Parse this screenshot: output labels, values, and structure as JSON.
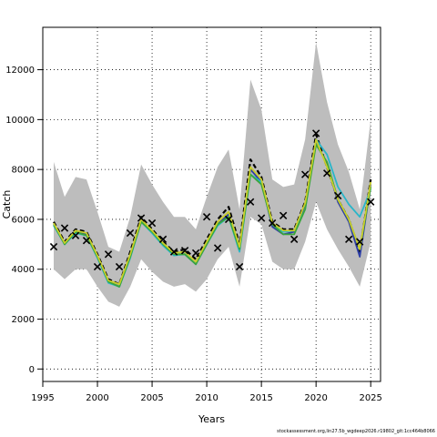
{
  "chart_data": {
    "type": "line",
    "xlabel": "Years",
    "ylabel": "Catch",
    "xlim": [
      1995,
      2025.9
    ],
    "ylim": [
      -500,
      13700
    ],
    "x_ticks": [
      1995,
      2000,
      2005,
      2010,
      2015,
      2020,
      2025
    ],
    "y_ticks": [
      0,
      2000,
      4000,
      6000,
      8000,
      10000,
      12000
    ],
    "grid": true,
    "x": [
      1996,
      1997,
      1998,
      1999,
      2000,
      2001,
      2002,
      2003,
      2004,
      2005,
      2006,
      2007,
      2008,
      2009,
      2010,
      2011,
      2012,
      2013,
      2014,
      2015,
      2016,
      2017,
      2018,
      2019,
      2020,
      2021,
      2022,
      2023,
      2024,
      2025
    ],
    "uncertainty_band": {
      "color": "#bdbdbd",
      "upper": [
        8300,
        6900,
        7700,
        7600,
        6300,
        4900,
        4700,
        6100,
        8200,
        7400,
        6700,
        6100,
        6100,
        5600,
        6900,
        8100,
        8800,
        6400,
        11600,
        10400,
        7600,
        7300,
        7400,
        9200,
        13100,
        10700,
        9000,
        7900,
        6400,
        10000
      ],
      "lower": [
        4000,
        3600,
        4000,
        4000,
        3300,
        2700,
        2500,
        3300,
        4400,
        3900,
        3500,
        3300,
        3400,
        3100,
        3600,
        4400,
        4900,
        3300,
        6100,
        5800,
        4300,
        4000,
        4000,
        5100,
        6700,
        5600,
        4800,
        4100,
        3300,
        5100
      ]
    },
    "series": [
      {
        "color": "#000000",
        "dashed": true,
        "values": [
          5900,
          5100,
          5600,
          5500,
          4600,
          3600,
          3400,
          4700,
          6100,
          5600,
          5100,
          4700,
          4800,
          4400,
          5200,
          6000,
          6500,
          5000,
          8400,
          7700,
          5900,
          5600,
          5600,
          6700,
          9400,
          8100,
          6800,
          6000,
          4700,
          7600
        ]
      },
      {
        "color": "#2d3ea6",
        "values": [
          5800,
          5000,
          5500,
          5400,
          4500,
          3500,
          3300,
          4500,
          5900,
          5500,
          5000,
          4600,
          4600,
          4200,
          5000,
          5800,
          6200,
          4800,
          8000,
          7500,
          5700,
          5400,
          5500,
          6600,
          9100,
          8200,
          6700,
          5900,
          4500,
          7400
        ]
      },
      {
        "color": "#29b6c9",
        "values": [
          5750,
          5000,
          5450,
          5350,
          4450,
          3450,
          3300,
          4450,
          5900,
          5450,
          4950,
          4550,
          4600,
          4200,
          5000,
          5750,
          6100,
          4700,
          7800,
          7500,
          5800,
          5500,
          5550,
          6400,
          9200,
          8600,
          7300,
          6600,
          6100,
          7200
        ]
      },
      {
        "color": "#3aa63a",
        "values": [
          5800,
          5000,
          5500,
          5350,
          4500,
          3500,
          3300,
          4500,
          5900,
          5500,
          5000,
          4600,
          4600,
          4200,
          5000,
          5800,
          6100,
          4800,
          7800,
          7400,
          5800,
          5400,
          5400,
          6400,
          9000,
          8300,
          6800,
          6000,
          4800,
          7300
        ]
      },
      {
        "color": "#c9ce2a",
        "values": [
          5850,
          5050,
          5550,
          5450,
          4550,
          3550,
          3400,
          4600,
          6000,
          5550,
          5050,
          4650,
          4700,
          4300,
          5100,
          5900,
          6300,
          4900,
          8100,
          7600,
          5850,
          5550,
          5550,
          6650,
          9200,
          8100,
          6800,
          6000,
          4800,
          7500
        ]
      }
    ],
    "observed": {
      "marker": "x",
      "values": [
        4900,
        5650,
        5350,
        5150,
        4100,
        4600,
        4100,
        5450,
        6050,
        5850,
        5200,
        4700,
        4750,
        4650,
        6100,
        4850,
        6000,
        4100,
        6700,
        6050,
        5850,
        6150,
        5200,
        7800,
        9450,
        7850,
        6950,
        5200,
        5100,
        6700
      ]
    }
  },
  "footer_text": "stockassessment.org,lin27.5b_wgdeep2026.r19802_git:1cc464b8066"
}
